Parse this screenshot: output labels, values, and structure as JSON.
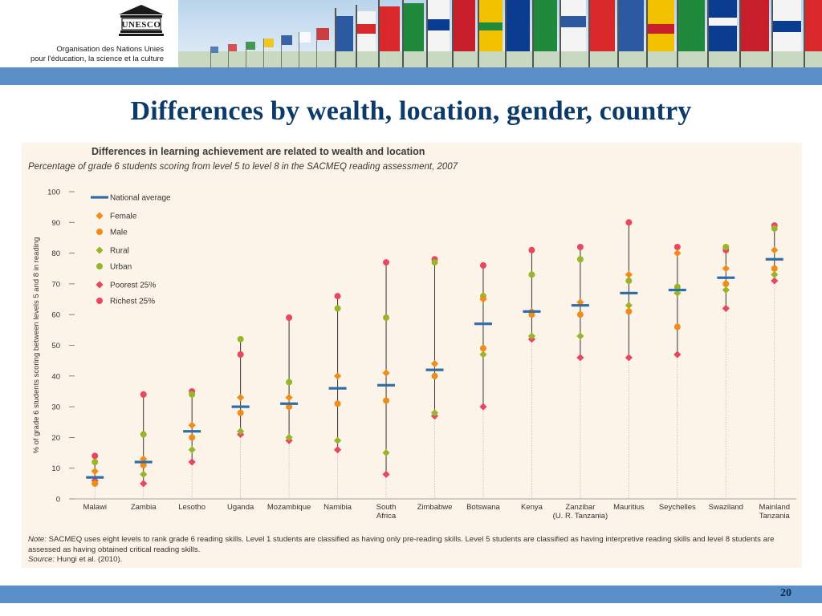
{
  "header": {
    "org_line1": "Organisation des Nations Unies",
    "org_line2": "pour l'éducation, la science et la culture",
    "logo_text": "UNESCO"
  },
  "slide": {
    "title": "Differences by wealth, location, gender, country",
    "number": "20"
  },
  "figure": {
    "title": "Differences in learning achievement are related to wealth and location",
    "subtitle": "Percentage of grade 6 students scoring from level 5 to level 8 in the SACMEQ reading assessment, 2007",
    "note_label": "Note:",
    "note_text": "SACMEQ uses eight levels to rank grade 6 reading skills. Level 1 students are classified as having only pre-reading skills. Level 5 students are classified as having interpretive reading skills and level 8 students are assessed as having obtained critical reading skills.",
    "source_label": "Source:",
    "source_text": "Hungi et al. (2010)."
  },
  "colors": {
    "national": "#2e6ea6",
    "female": "#f08c1a",
    "male": "#f08c1a",
    "rural": "#9bb52a",
    "urban": "#9bb52a",
    "poorest": "#e8475f",
    "richest": "#e8475f",
    "band": "#5b8fc8",
    "title": "#0c3b6a"
  },
  "chart_data": {
    "type": "scatter",
    "ylabel": "% of grade 6 students scoring between levels 5 and 8 in reading",
    "ylim": [
      0,
      100
    ],
    "yticks": [
      0,
      10,
      20,
      30,
      40,
      50,
      60,
      70,
      80,
      90,
      100
    ],
    "categories": [
      [
        "Malawi"
      ],
      [
        "Zambia"
      ],
      [
        "Lesotho"
      ],
      [
        "Uganda"
      ],
      [
        "Mozambique"
      ],
      [
        "Namibia"
      ],
      [
        "South",
        "Africa"
      ],
      [
        "Zimbabwe"
      ],
      [
        "Botswana"
      ],
      [
        "Kenya"
      ],
      [
        "Zanzibar",
        "(U. R. Tanzania)"
      ],
      [
        "Mauritius"
      ],
      [
        "Seychelles"
      ],
      [
        "Swaziland"
      ],
      [
        "Mainland",
        "Tanzania"
      ]
    ],
    "legend_position": "top-left",
    "series": [
      {
        "name": "National average",
        "key": "national",
        "marker": "dash",
        "values": [
          7,
          12,
          22,
          30,
          31,
          36,
          37,
          42,
          57,
          61,
          63,
          67,
          68,
          72,
          78
        ]
      },
      {
        "name": "Female",
        "key": "female",
        "marker": "diamond",
        "values": [
          9,
          13,
          24,
          33,
          33,
          40,
          41,
          44,
          65,
          61,
          64,
          73,
          80,
          75,
          81
        ]
      },
      {
        "name": "Male",
        "key": "male",
        "marker": "circle",
        "values": [
          5,
          11,
          20,
          28,
          30,
          31,
          32,
          40,
          49,
          60,
          60,
          61,
          56,
          70,
          75
        ]
      },
      {
        "name": "Rural",
        "key": "rural",
        "marker": "diamond",
        "values": [
          5,
          8,
          16,
          22,
          20,
          19,
          15,
          28,
          47,
          53,
          53,
          63,
          67,
          68,
          73
        ]
      },
      {
        "name": "Urban",
        "key": "urban",
        "marker": "circle",
        "values": [
          12,
          21,
          34,
          52,
          38,
          62,
          59,
          77,
          66,
          73,
          78,
          71,
          69,
          82,
          88
        ]
      },
      {
        "name": "Poorest 25%",
        "key": "poorest",
        "marker": "diamond",
        "values": [
          6,
          5,
          12,
          21,
          19,
          16,
          8,
          27,
          30,
          52,
          46,
          46,
          47,
          62,
          71
        ]
      },
      {
        "name": "Richest 25%",
        "key": "richest",
        "marker": "circle",
        "values": [
          14,
          34,
          35,
          47,
          59,
          66,
          77,
          78,
          76,
          81,
          82,
          90,
          82,
          81,
          89
        ]
      }
    ]
  }
}
